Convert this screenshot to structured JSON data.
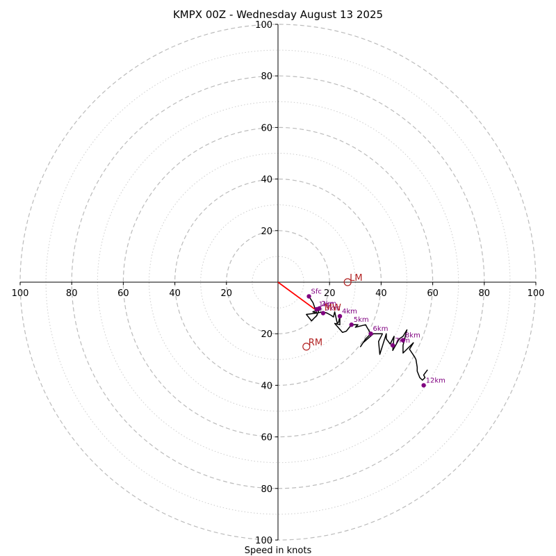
{
  "chart_data": {
    "type": "hodograph",
    "title": "KMPX 00Z - Wednesday August 13 2025",
    "xlabel": "Speed in knots",
    "ylabel": "",
    "range": [
      -100,
      100
    ],
    "rings_major": [
      20,
      40,
      60,
      80,
      100
    ],
    "rings_minor": [
      10,
      30,
      50,
      70,
      90
    ],
    "axis_tick_labels": [
      "100",
      "80",
      "60",
      "40",
      "20",
      "20",
      "40",
      "60",
      "80",
      "100"
    ],
    "axis_tick_values": [
      -100,
      -80,
      -60,
      -40,
      -20,
      20,
      40,
      60,
      80,
      100
    ],
    "hodograph_trace": [
      [
        12,
        -5.5
      ],
      [
        13.6,
        -8
      ],
      [
        15,
        -12
      ],
      [
        13.5,
        -11.5
      ],
      [
        16,
        -10.5
      ],
      [
        15,
        -13
      ],
      [
        13,
        -15
      ],
      [
        11,
        -12.5
      ],
      [
        15,
        -12
      ],
      [
        17.5,
        -11.5
      ],
      [
        19,
        -12
      ],
      [
        20.5,
        -12.8
      ],
      [
        21.5,
        -13.5
      ],
      [
        22,
        -11.5
      ],
      [
        23,
        -16
      ],
      [
        23.5,
        -15.5
      ],
      [
        24,
        -13.2
      ],
      [
        24,
        -16.5
      ],
      [
        22,
        -16
      ],
      [
        25,
        -19.5
      ],
      [
        26.5,
        -19
      ],
      [
        28.5,
        -16.5
      ],
      [
        31,
        -16.5
      ],
      [
        30,
        -17.5
      ],
      [
        34,
        -16.5
      ],
      [
        34.5,
        -17.5
      ],
      [
        36,
        -20
      ],
      [
        34,
        -22
      ],
      [
        32,
        -25
      ],
      [
        33,
        -23.5
      ],
      [
        37,
        -20
      ],
      [
        40.5,
        -20
      ],
      [
        39,
        -23
      ],
      [
        39.5,
        -28
      ],
      [
        42,
        -20
      ],
      [
        42,
        -22
      ],
      [
        43.5,
        -24
      ],
      [
        45,
        -21
      ],
      [
        44.5,
        -26.5
      ],
      [
        47,
        -22
      ],
      [
        48.5,
        -21
      ],
      [
        50,
        -18.5
      ],
      [
        48.5,
        -24.5
      ],
      [
        48.5,
        -27.5
      ],
      [
        52.5,
        -23.5
      ],
      [
        51,
        -26
      ],
      [
        53,
        -29
      ],
      [
        53.5,
        -30
      ],
      [
        54,
        -33
      ],
      [
        54,
        -34.5
      ],
      [
        55,
        -37
      ],
      [
        56,
        -38
      ],
      [
        57,
        -37
      ],
      [
        56.5,
        -36
      ],
      [
        58,
        -34
      ]
    ],
    "height_markers": [
      {
        "label": "Sfc",
        "u": 12,
        "v": -5.5
      },
      {
        "label": "1km",
        "u": 15,
        "v": -10.5
      },
      {
        "label": "2km",
        "u": 16,
        "v": -10.2
      },
      {
        "label": "3km",
        "u": 17.5,
        "v": -12
      },
      {
        "label": "4km",
        "u": 24,
        "v": -13.2
      },
      {
        "label": "5km",
        "u": 28.5,
        "v": -16.5
      },
      {
        "label": "6km",
        "u": 36,
        "v": -20
      },
      {
        "label": "7km",
        "u": 44.5,
        "v": -24.5
      },
      {
        "label": "8km",
        "u": 48.5,
        "v": -22.5
      },
      {
        "label": "12km",
        "u": 56.5,
        "v": -40
      }
    ],
    "storm_motion": [
      {
        "label": "LM",
        "u": 27,
        "v": 0
      },
      {
        "label": "RM",
        "u": 11,
        "v": -25
      },
      {
        "label": "MW",
        "u": 18,
        "v": -11
      }
    ],
    "shear_vector": {
      "from": [
        0,
        0
      ],
      "to": [
        15,
        -11
      ]
    },
    "colors": {
      "trace": "#000000",
      "marker": "#800080",
      "storm": "#b22222",
      "shear": "#ff0000",
      "ring": "#bbbbbb"
    }
  }
}
